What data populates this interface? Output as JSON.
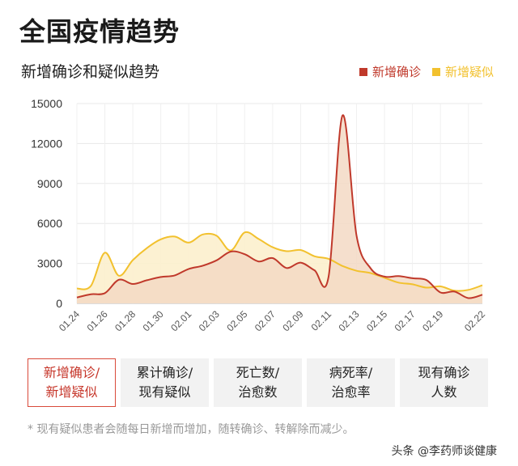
{
  "page_title": "全国疫情趋势",
  "chart_title": "新增确诊和疑似趋势",
  "legend": [
    {
      "label": "新增确诊",
      "color": "#c0392b"
    },
    {
      "label": "新增疑似",
      "color": "#f2c12e"
    }
  ],
  "tabs": [
    {
      "line1": "新增确诊/",
      "line2": "新增疑似",
      "active": true
    },
    {
      "line1": "累计确诊/",
      "line2": "现有疑似",
      "active": false
    },
    {
      "line1": "死亡数/",
      "line2": "治愈数",
      "active": false
    },
    {
      "line1": "病死率/",
      "line2": "治愈率",
      "active": false
    },
    {
      "line1": "现有确诊",
      "line2": "人数",
      "active": false
    }
  ],
  "footnote": "* 现有疑似患者会随每日新增而增加，随转确诊、转解除而减少。",
  "watermark": "头条 @李药师谈健康",
  "chart_data": {
    "type": "area",
    "x": [
      "01.24",
      "01.25",
      "01.26",
      "01.27",
      "01.28",
      "01.29",
      "01.30",
      "01.31",
      "02.01",
      "02.02",
      "02.03",
      "02.04",
      "02.05",
      "02.06",
      "02.07",
      "02.08",
      "02.09",
      "02.10",
      "02.11",
      "02.12",
      "02.13",
      "02.14",
      "02.15",
      "02.16",
      "02.17",
      "02.18",
      "02.19",
      "02.20",
      "02.21",
      "02.22"
    ],
    "x_tick_labels": [
      "01.24",
      "01.26",
      "01.28",
      "01.30",
      "02.01",
      "02.03",
      "02.05",
      "02.07",
      "02.09",
      "02.11",
      "02.13",
      "02.15",
      "02.17",
      "02.19",
      "02.22"
    ],
    "yticks": [
      0,
      3000,
      6000,
      9000,
      12000,
      15000
    ],
    "ylim": [
      0,
      15000
    ],
    "grid": true,
    "legend_position": "top-right",
    "series": [
      {
        "name": "新增确诊",
        "color": "#c0392b",
        "fill": "#f3d9c4",
        "values": [
          444,
          688,
          769,
          1771,
          1459,
          1737,
          1982,
          2102,
          2590,
          2829,
          3235,
          3887,
          3694,
          3143,
          3399,
          2656,
          3062,
          2478,
          2015,
          14108,
          5090,
          2641,
          2009,
          2048,
          1886,
          1749,
          820,
          889,
          397,
          648
        ]
      },
      {
        "name": "新增疑似",
        "color": "#f2c12e",
        "fill": "#fcefcd",
        "values": [
          1118,
          1309,
          3806,
          2077,
          3248,
          4148,
          4812,
          5019,
          4562,
          5173,
          5072,
          3971,
          5328,
          4833,
          4214,
          3916,
          4008,
          3536,
          3342,
          2807,
          2450,
          2277,
          1918,
          1563,
          1432,
          1185,
          1277,
          956,
          1016,
          1361
        ]
      }
    ]
  }
}
